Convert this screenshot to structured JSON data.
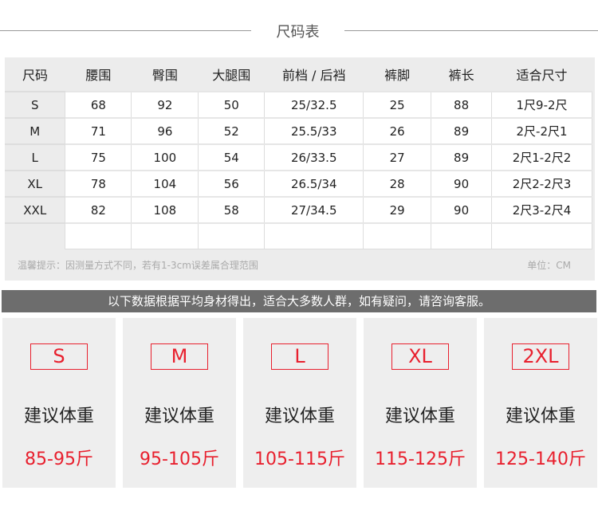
{
  "title": "尺码表",
  "table": {
    "headers": [
      "尺码",
      "腰围",
      "臀围",
      "大腿围",
      "前档 / 后裆",
      "裤脚",
      "裤长",
      "适合尺寸"
    ],
    "rows": [
      [
        "S",
        "68",
        "92",
        "50",
        "25/32.5",
        "25",
        "88",
        "1尺9-2尺"
      ],
      [
        "M",
        "71",
        "96",
        "52",
        "25.5/33",
        "26",
        "89",
        "2尺-2尺1"
      ],
      [
        "L",
        "75",
        "100",
        "54",
        "26/33.5",
        "27",
        "89",
        "2尺1-2尺2"
      ],
      [
        "XL",
        "78",
        "104",
        "56",
        "26.5/34",
        "28",
        "90",
        "2尺2-2尺3"
      ],
      [
        "XXL",
        "82",
        "108",
        "58",
        "27/34.5",
        "29",
        "90",
        "2尺3-2尺4"
      ],
      [
        "",
        "",
        "",
        "",
        "",
        "",
        "",
        ""
      ]
    ],
    "note": "温馨提示：因测量方式不同，若有1-3cm误差属合理范围",
    "unit": "单位：CM"
  },
  "banner": "以下数据根据平均身材得出，适合大多数人群，如有疑问，请咨询客服。",
  "cards": [
    {
      "size": "S",
      "label": "建议体重",
      "weight": "85-95斤"
    },
    {
      "size": "M",
      "label": "建议体重",
      "weight": "95-105斤"
    },
    {
      "size": "L",
      "label": "建议体重",
      "weight": "105-115斤"
    },
    {
      "size": "XL",
      "label": "建议体重",
      "weight": "115-125斤"
    },
    {
      "size": "2XL",
      "label": "建议体重",
      "weight": "125-140斤"
    }
  ],
  "colors": {
    "accent": "#e8202e",
    "banner": "#6d6d6d",
    "panel": "#eeeeee"
  }
}
